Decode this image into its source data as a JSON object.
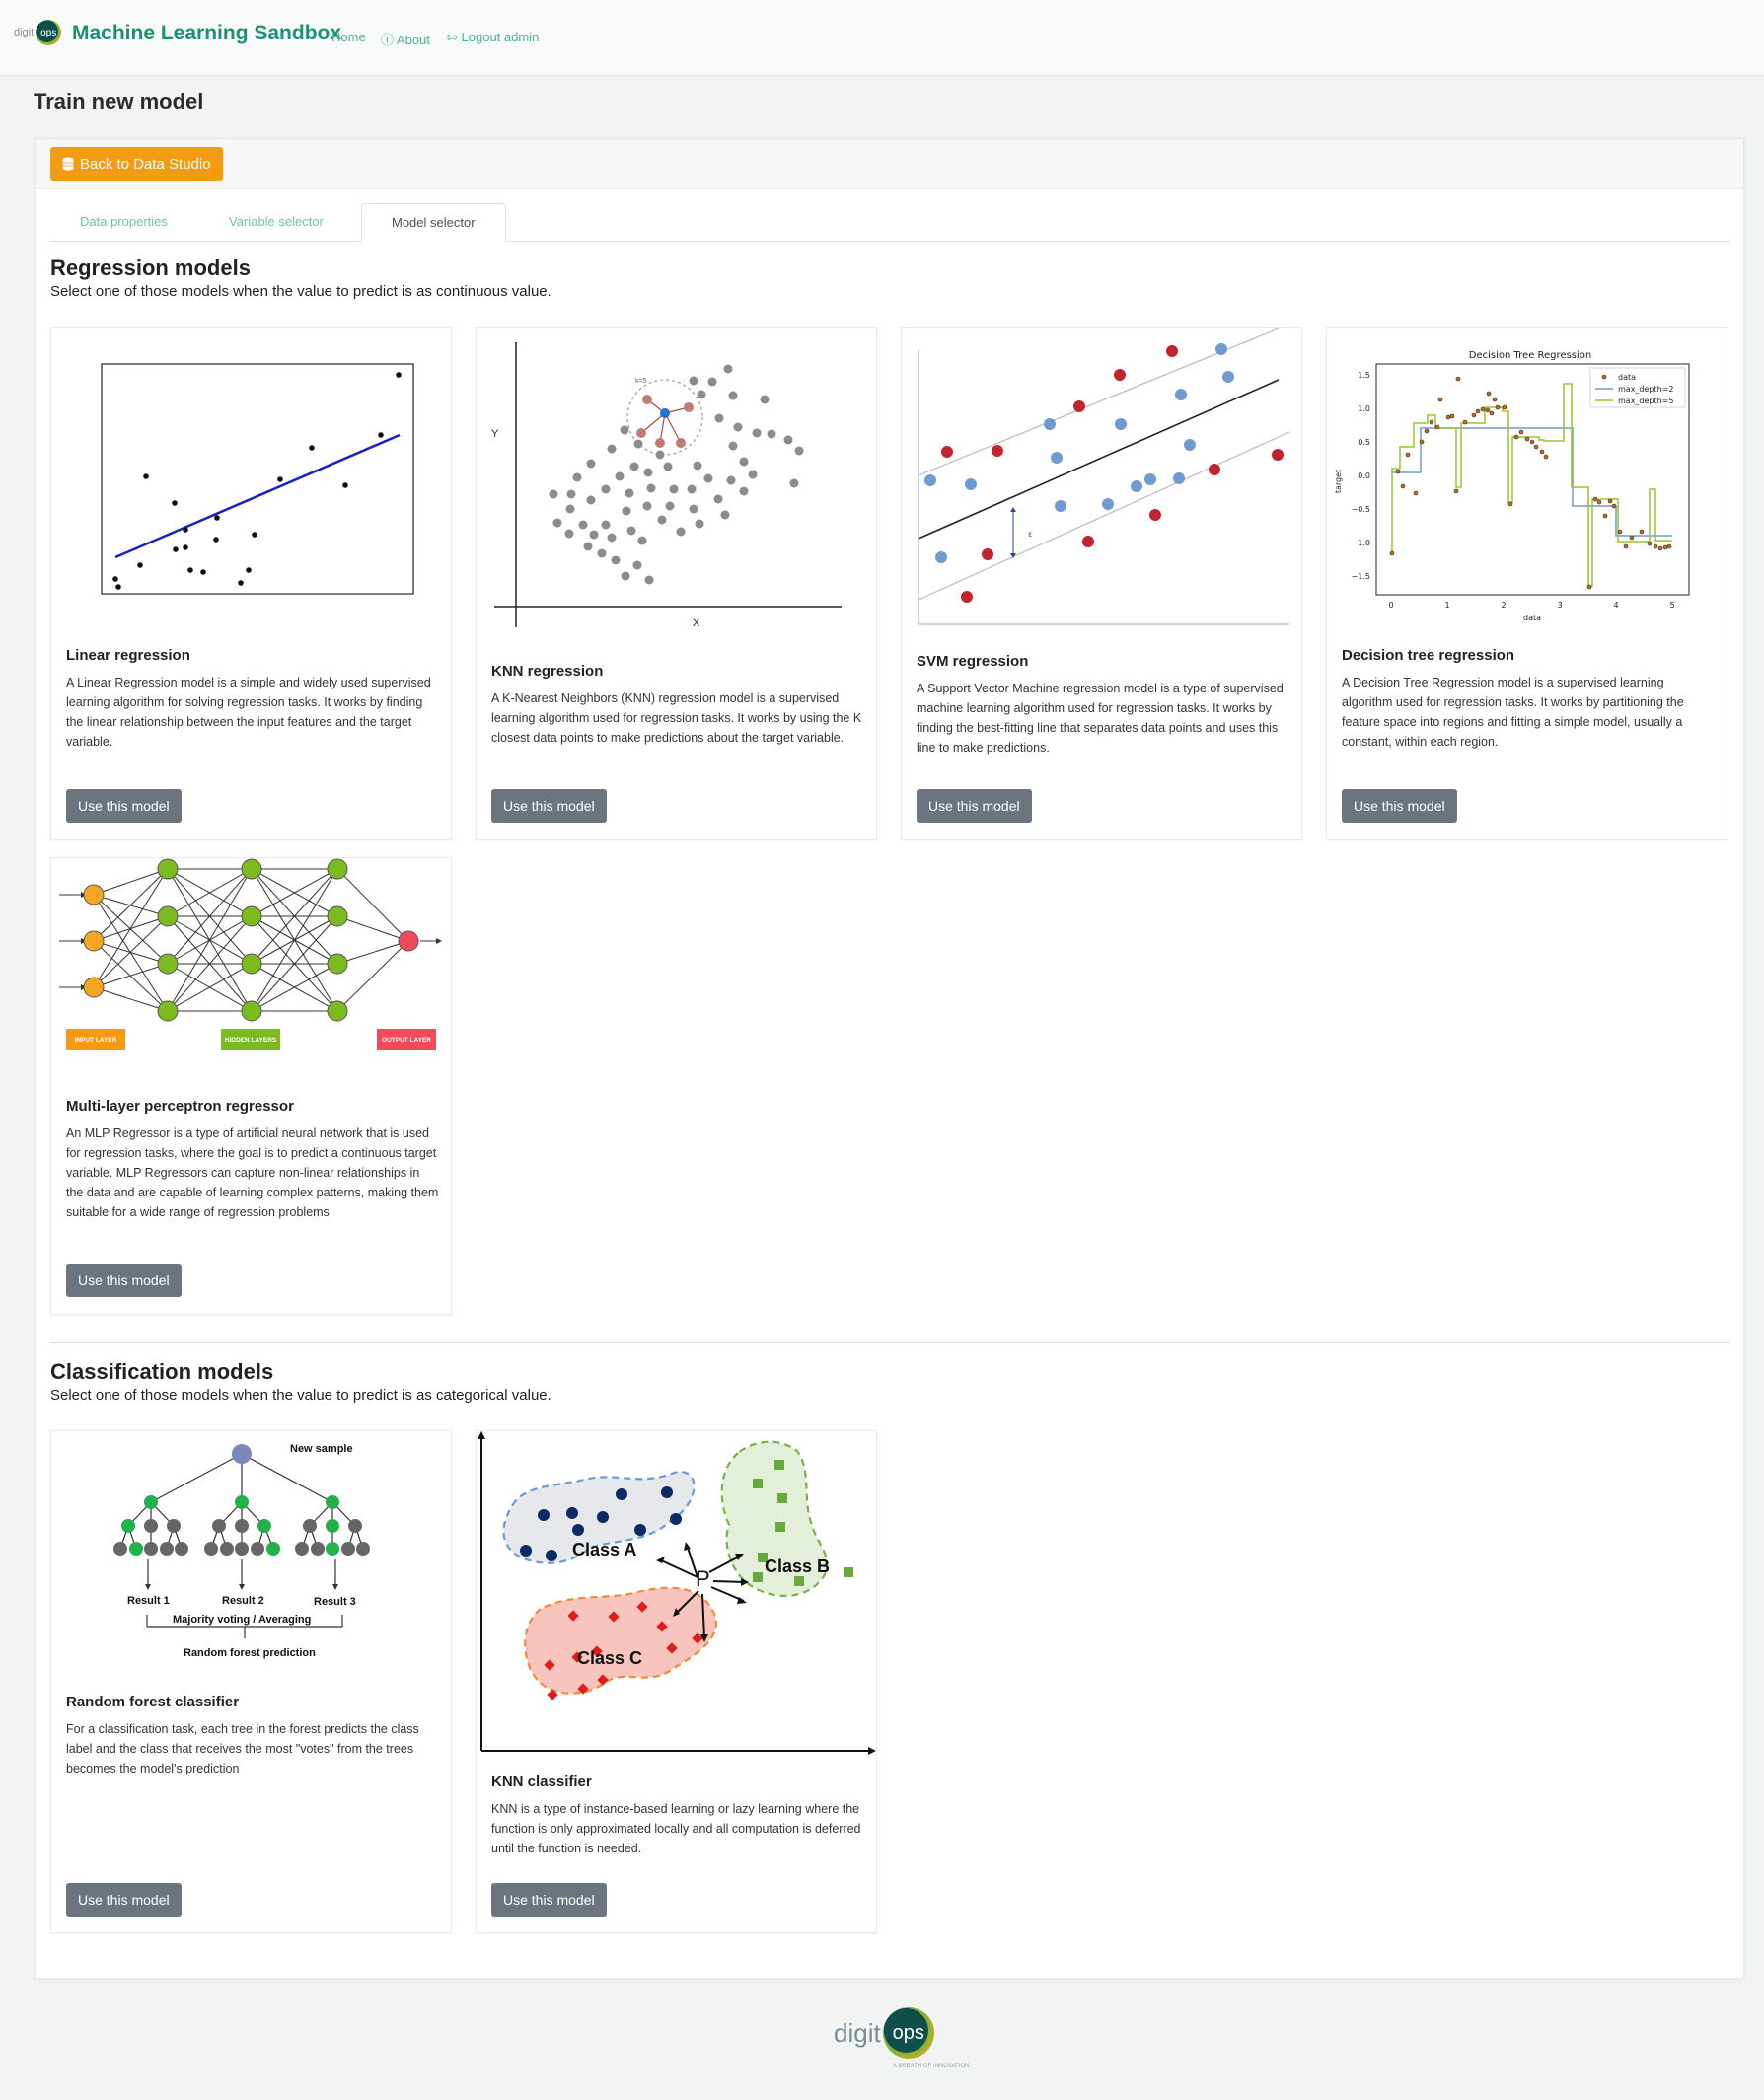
{
  "nav": {
    "logo_prefix": "digit",
    "logo_circle": "ops",
    "brand": "Machine Learning Sandbox",
    "links": [
      {
        "label": "Home",
        "icon": ""
      },
      {
        "label": "About",
        "icon": "question-circle-icon"
      },
      {
        "label": "Logout admin",
        "icon": "logout-icon"
      }
    ]
  },
  "page": {
    "title": "Train new model",
    "back_button": "Back to Data Studio",
    "tabs": [
      "Data properties",
      "Variable selector",
      "Model selector"
    ],
    "active_tab": "Model selector"
  },
  "regression": {
    "title": "Regression models",
    "subtitle": "Select one of those models when the value to predict is as continuous value.",
    "models": [
      {
        "name": "Linear regression",
        "description": "A Linear Regression model is a simple and widely used supervised learning algorithm for solving regression tasks. It works by finding the linear relationship between the input features and the target variable.",
        "button": "Use this model"
      },
      {
        "name": "KNN regression",
        "description": "A K-Nearest Neighbors (KNN) regression model is a supervised learning algorithm used for regression tasks. It works by using the K closest data points to make predictions about the target variable.",
        "button": "Use this model"
      },
      {
        "name": "SVM regression",
        "description": "A Support Vector Machine regression model is a type of supervised machine learning algorithm used for regression tasks. It works by finding the best-fitting line that separates data points and uses this line to make predictions.",
        "button": "Use this model"
      },
      {
        "name": "Decision tree regression",
        "description": "A Decision Tree Regression model is a supervised learning algorithm used for regression tasks. It works by partitioning the feature space into regions and fitting a simple model, usually a constant, within each region.",
        "button": "Use this model"
      },
      {
        "name": "Multi-layer perceptron regressor",
        "description": "An MLP Regressor is a type of artificial neural network that is used for regression tasks, where the goal is to predict a continuous target variable. MLP Regressors can capture non-linear relationships in the data and are capable of learning complex patterns, making them suitable for a wide range of regression problems",
        "button": "Use this model"
      }
    ]
  },
  "classification": {
    "title": "Classification models",
    "subtitle": "Select one of those models when the value to predict is as categorical value.",
    "models": [
      {
        "name": "Random forest classifier",
        "description": "For a classification task, each tree in the forest predicts the class label and the class that receives the most \"votes\" from the trees becomes the model's prediction",
        "button": "Use this model"
      },
      {
        "name": "KNN classifier",
        "description": "KNN is a type of instance-based learning or lazy learning where the function is only approximated locally and all computation is deferred until the function is needed.",
        "button": "Use this model"
      }
    ]
  },
  "illustrations": {
    "knn_axes": {
      "y": "Y",
      "x": "X",
      "k": "k=5"
    },
    "svm": {
      "epsilon": "ε"
    },
    "tree": {
      "title": "Decision Tree Regression",
      "xlabel": "data",
      "ylabel": "target",
      "legend": [
        "data",
        "max_depth=2",
        "max_depth=5"
      ],
      "yticks": [
        "1.5",
        "1.0",
        "0.5",
        "0.0",
        "−0.5",
        "−1.0",
        "−1.5"
      ],
      "xticks": [
        "0",
        "1",
        "2",
        "3",
        "4",
        "5"
      ]
    },
    "mlp": {
      "input": "INPUT LAYER",
      "hidden": "HIDDEN LAYERS",
      "output": "OUTPUT LAYER"
    },
    "rf": {
      "new_sample": "New sample",
      "results": [
        "Result 1",
        "Result 2",
        "Result 3"
      ],
      "voting": "Majority voting / Averaging",
      "prediction": "Random forest prediction"
    },
    "knnc": {
      "class_a": "Class A",
      "class_b": "Class B",
      "class_c": "Class C",
      "point": "P"
    }
  },
  "footer": {
    "logo_prefix": "digit",
    "logo_circle": "ops",
    "tagline": "A BREATH OF INNOVATION"
  },
  "colors": {
    "brand": "#1f8f74",
    "accent": "#f39c12",
    "button": "#6c757d",
    "link": "#46b59a"
  }
}
